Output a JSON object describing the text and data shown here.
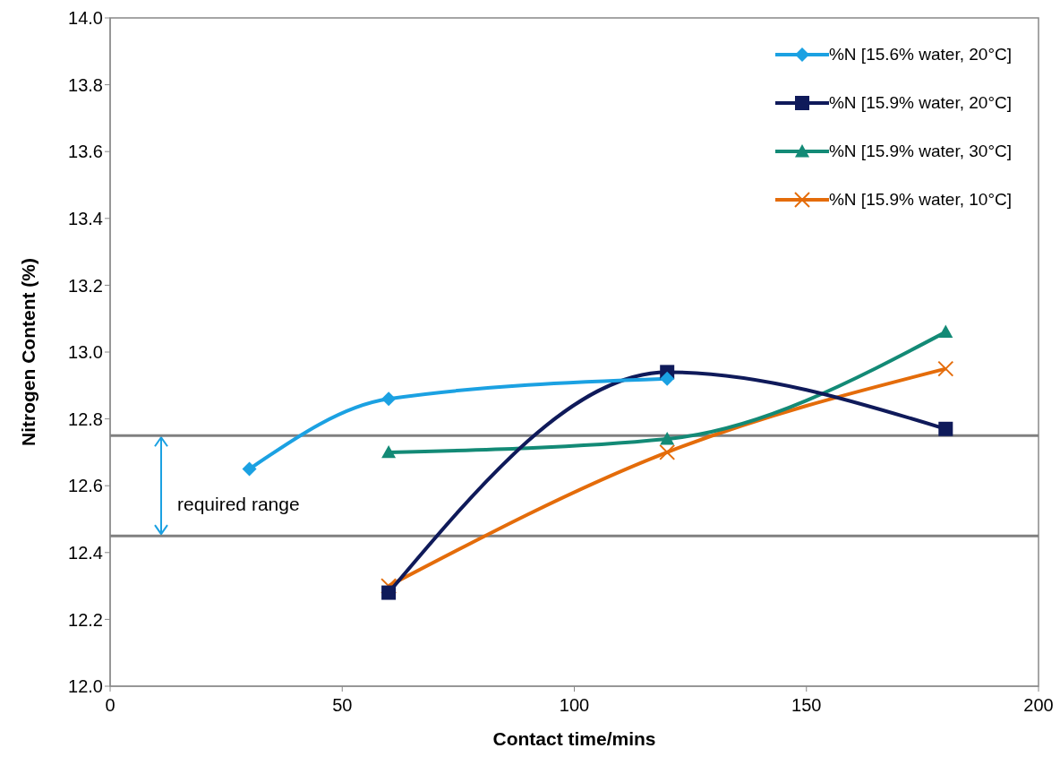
{
  "chart_data": {
    "type": "line",
    "xlabel": "Contact time/mins",
    "ylabel": "Nitrogen Content (%)",
    "xlim": [
      0,
      200
    ],
    "xticks": [
      0,
      50,
      100,
      150,
      200
    ],
    "ylim": [
      12.0,
      14.0
    ],
    "yticks": [
      {
        "value": 12.0,
        "label": "12.0"
      },
      {
        "value": 12.2,
        "label": "12.2"
      },
      {
        "value": 12.4,
        "label": "12.4"
      },
      {
        "value": 12.6,
        "label": "12.6"
      },
      {
        "value": 12.8,
        "label": "12.8"
      },
      {
        "value": 13.0,
        "label": "13.0"
      },
      {
        "value": 13.2,
        "label": "13.2"
      },
      {
        "value": 13.4,
        "label": "13.4"
      },
      {
        "value": 13.6,
        "label": "13.6"
      },
      {
        "value": 13.8,
        "label": "13.8"
      },
      {
        "value": 14.0,
        "label": "14.0"
      }
    ],
    "grid": false,
    "legend": "top right",
    "line_style": "solid",
    "series": [
      {
        "name": "%N [15.6% water, 20°C]",
        "color": "#1ba1e2",
        "marker": "diamond",
        "x": [
          30,
          60,
          120
        ],
        "values": [
          12.65,
          12.86,
          12.92
        ]
      },
      {
        "name": "%N [15.9% water, 20°C]",
        "color": "#0f1a5a",
        "marker": "square",
        "x": [
          60,
          120,
          180
        ],
        "values": [
          12.28,
          12.94,
          12.77
        ]
      },
      {
        "name": "%N [15.9% water, 30°C]",
        "color": "#138a76",
        "marker": "triangle",
        "x": [
          60,
          120,
          180
        ],
        "values": [
          12.7,
          12.74,
          13.06
        ]
      },
      {
        "name": "%N [15.9% water, 10°C]",
        "color": "#e46c0a",
        "marker": "cross",
        "x": [
          60,
          120,
          180
        ],
        "values": [
          12.3,
          12.7,
          12.95
        ]
      }
    ],
    "ref_lines": [
      {
        "axis": "y",
        "value": 12.75,
        "color": "#808080"
      },
      {
        "axis": "y",
        "value": 12.45,
        "color": "#808080"
      }
    ],
    "annotations": [
      "required range"
    ]
  }
}
